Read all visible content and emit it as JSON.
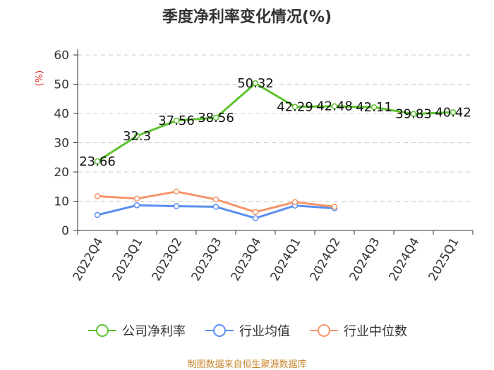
{
  "chart_data": {
    "type": "line",
    "title": "季度净利率变化情况(%)",
    "ylabel": "(%)",
    "ylim": [
      0,
      60
    ],
    "yticks": [
      0,
      10,
      20,
      30,
      40,
      50,
      60
    ],
    "grid": true,
    "legend_position": "bottom",
    "categories": [
      "2022Q4",
      "2023Q1",
      "2023Q2",
      "2023Q3",
      "2023Q4",
      "2024Q1",
      "2024Q2",
      "2024Q3",
      "2024Q4",
      "2025Q1"
    ],
    "series": [
      {
        "name": "公司净利率",
        "color": "#5cc22e",
        "show_labels": true,
        "values": [
          23.66,
          32.3,
          37.56,
          38.56,
          50.32,
          42.29,
          42.48,
          42.11,
          39.83,
          40.42
        ],
        "labels": [
          "23.66",
          "32.3",
          "37.56",
          "38.56",
          "50.32",
          "42.29",
          "42.48",
          "42.11",
          "39.83",
          "40.42"
        ]
      },
      {
        "name": "行业均值",
        "color": "#5b8ff0",
        "show_labels": false,
        "values": [
          5.3,
          8.6,
          8.3,
          8.1,
          4.2,
          8.5,
          7.6,
          null,
          null,
          null
        ]
      },
      {
        "name": "行业中位数",
        "color": "#f5956a",
        "show_labels": false,
        "values": [
          11.7,
          10.9,
          13.3,
          10.6,
          6.3,
          9.7,
          8.1,
          null,
          null,
          null
        ]
      }
    ]
  },
  "source": "制图数据来自恒生聚源数据库"
}
